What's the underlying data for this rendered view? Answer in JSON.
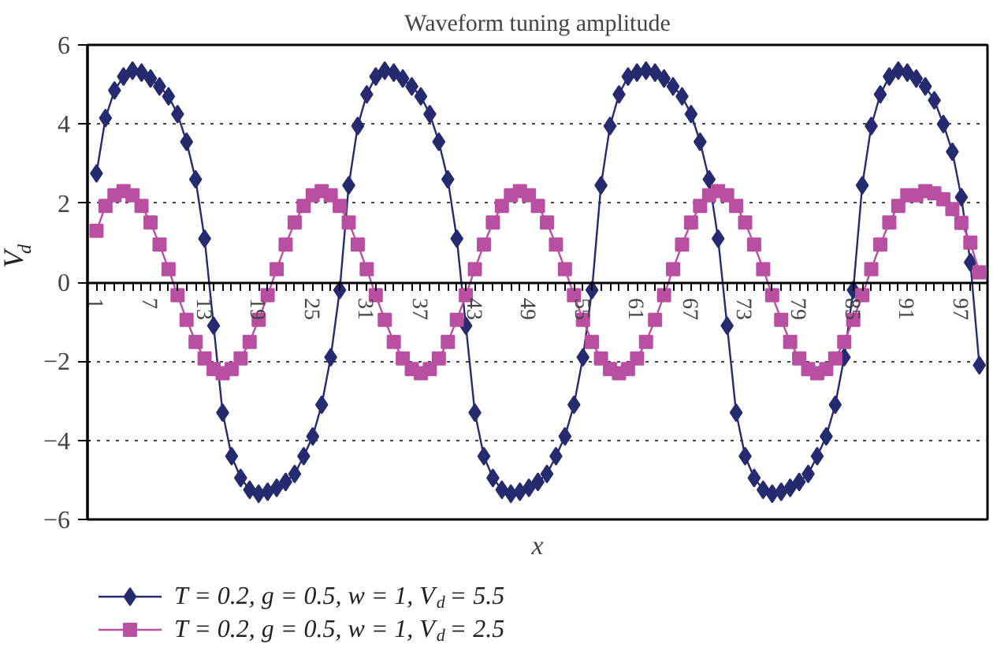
{
  "chart_data": {
    "type": "line",
    "title": "Waveform tuning amplitude",
    "xlabel": "x",
    "ylabel": "V$_{d}$",
    "categories": [
      "1",
      null,
      null,
      null,
      null,
      null,
      "7",
      null,
      null,
      null,
      null,
      null,
      "13",
      null,
      null,
      null,
      null,
      null,
      "19",
      null,
      null,
      null,
      null,
      null,
      "25",
      null,
      null,
      null,
      null,
      null,
      "31",
      null,
      null,
      null,
      null,
      null,
      "37",
      null,
      null,
      null,
      null,
      null,
      "43",
      null,
      null,
      null,
      null,
      null,
      "49",
      null,
      null,
      null,
      null,
      null,
      "55",
      null,
      null,
      null,
      null,
      null,
      "61",
      null,
      null,
      null,
      null,
      null,
      "67",
      null,
      null,
      null,
      null,
      null,
      "73",
      null,
      null,
      null,
      null,
      null,
      "79",
      null,
      null,
      null,
      null,
      null,
      "85",
      null,
      null,
      null,
      null,
      null,
      "91",
      null,
      null,
      null,
      null,
      null,
      "97",
      null,
      null
    ],
    "series": [
      {
        "name": "T = 0.2, g = 0.5, w = 1, V$_{d}$ = 5.5",
        "color": "#262a6e",
        "marker": "diamond",
        "values": [
          2.75,
          4.15,
          4.85,
          5.2,
          5.35,
          5.3,
          5.15,
          4.95,
          4.7,
          4.25,
          3.55,
          2.6,
          1.1,
          -1.1,
          -3.3,
          -4.4,
          -4.95,
          -5.25,
          -5.35,
          -5.3,
          -5.2,
          -5.05,
          -4.85,
          -4.4,
          -3.9,
          -3.1,
          -1.9,
          -0.2,
          2.45,
          3.95,
          4.75,
          5.2,
          5.35,
          5.3,
          5.15,
          4.95,
          4.7,
          4.25,
          3.55,
          2.6,
          1.1,
          -1.1,
          -3.3,
          -4.4,
          -4.95,
          -5.25,
          -5.35,
          -5.3,
          -5.2,
          -5.05,
          -4.85,
          -4.4,
          -3.9,
          -3.1,
          -1.9,
          -0.2,
          2.45,
          3.95,
          4.75,
          5.2,
          5.3,
          5.35,
          5.3,
          5.15,
          4.95,
          4.7,
          4.25,
          3.55,
          2.6,
          1.1,
          -1.1,
          -3.3,
          -4.4,
          -4.95,
          -5.25,
          -5.35,
          -5.3,
          -5.2,
          -5.05,
          -4.85,
          -4.4,
          -3.9,
          -3.1,
          -1.9,
          -0.2,
          2.45,
          3.95,
          4.75,
          5.2,
          5.35,
          5.3,
          5.15,
          4.95,
          4.6,
          4.0,
          3.3,
          2.15,
          0.5,
          -2.1
        ]
      },
      {
        "name": "T = 0.2, g = 0.5, w = 1, V$_{d}$ = 2.5",
        "color": "#b94fa0",
        "marker": "square",
        "values": [
          1.3,
          1.93,
          2.2,
          2.3,
          2.2,
          1.93,
          1.51,
          0.95,
          0.33,
          -0.33,
          -0.95,
          -1.51,
          -1.93,
          -2.2,
          -2.3,
          -2.2,
          -1.93,
          -1.51,
          -0.95,
          -0.33,
          0.33,
          0.95,
          1.51,
          1.93,
          2.2,
          2.3,
          2.2,
          1.93,
          1.51,
          0.95,
          0.33,
          -0.33,
          -0.95,
          -1.51,
          -1.93,
          -2.2,
          -2.3,
          -2.2,
          -1.93,
          -1.51,
          -0.95,
          -0.33,
          0.33,
          0.95,
          1.51,
          1.93,
          2.2,
          2.3,
          2.2,
          1.93,
          1.51,
          0.95,
          0.33,
          -0.33,
          -0.95,
          -1.51,
          -1.93,
          -2.2,
          -2.3,
          -2.2,
          -1.93,
          -1.51,
          -0.95,
          -0.33,
          0.33,
          0.95,
          1.51,
          1.93,
          2.2,
          2.3,
          2.2,
          1.93,
          1.51,
          0.95,
          0.33,
          -0.33,
          -0.95,
          -1.51,
          -1.93,
          -2.2,
          -2.3,
          -2.2,
          -1.93,
          -1.51,
          -0.95,
          -0.33,
          0.33,
          0.95,
          1.51,
          1.93,
          2.2,
          2.2,
          2.3,
          2.25,
          2.1,
          1.85,
          1.5,
          1.0,
          0.25
        ]
      }
    ],
    "ylim": [
      -6,
      6
    ],
    "yticks": [
      {
        "value": -6,
        "label": "−6"
      },
      {
        "value": -4,
        "label": "−4"
      },
      {
        "value": -2,
        "label": "−2"
      },
      0,
      2,
      4,
      6
    ],
    "grid": "y",
    "legend": "bottom",
    "line_style": "solid"
  }
}
